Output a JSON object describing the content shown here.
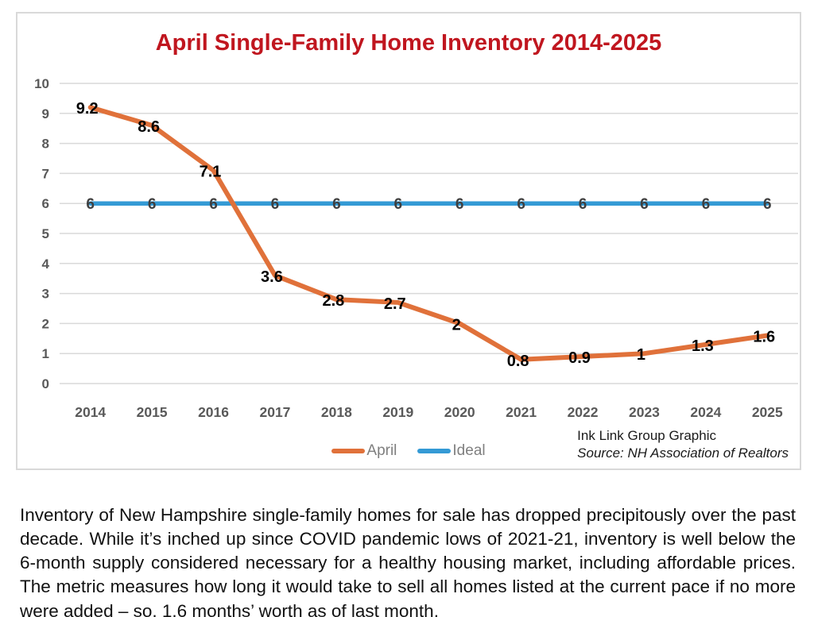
{
  "header": {
    "title": "April Single-Family Home Inventory 2014-2025",
    "title_color": "#c0161f"
  },
  "chart_data": {
    "type": "line",
    "categories": [
      "2014",
      "2015",
      "2016",
      "2017",
      "2018",
      "2019",
      "2020",
      "2021",
      "2022",
      "2023",
      "2024",
      "2025"
    ],
    "series": [
      {
        "name": "April",
        "color": "#e0713a",
        "values": [
          9.2,
          8.6,
          7.1,
          3.6,
          2.8,
          2.7,
          2,
          0.8,
          0.9,
          1,
          1.3,
          1.6
        ],
        "data_label_color": "#000000"
      },
      {
        "name": "Ideal",
        "color": "#349ad5",
        "values": [
          6,
          6,
          6,
          6,
          6,
          6,
          6,
          6,
          6,
          6,
          6,
          6
        ],
        "data_label_color": "#3f3f3f"
      }
    ],
    "ylim": [
      0,
      10
    ],
    "yticks": [
      0,
      1,
      2,
      3,
      4,
      5,
      6,
      7,
      8,
      9,
      10
    ],
    "grid": true,
    "grid_color": "#d9d9d9",
    "axis_label_color": "#595959",
    "legend_position": "bottom",
    "data_labels": "center"
  },
  "attribution": {
    "line1": "Ink Link Group Graphic",
    "line2": "Source: NH Association of Realtors"
  },
  "caption": "Inventory of New Hampshire single-family homes for sale has dropped precipitously over the past decade. While it’s inched up since COVID pandemic lows of 2021-21, inventory is well below the 6-month supply considered necessary for a healthy housing market, including affordable prices. The metric measures how long it would take to sell all homes listed at the current pace if no more were added – so, 1.6 months’ worth as of last month."
}
